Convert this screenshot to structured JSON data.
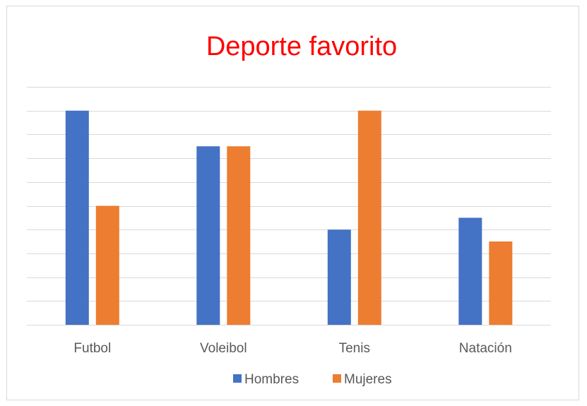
{
  "chart_data": {
    "type": "bar",
    "title": "Deporte favorito",
    "categories": [
      "Futbol",
      "Voleibol",
      "Tenis",
      "Natación"
    ],
    "series": [
      {
        "name": "Hombres",
        "values": [
          9,
          7.5,
          4,
          4.5
        ]
      },
      {
        "name": "Mujeres",
        "values": [
          5,
          7.5,
          9,
          3.5
        ]
      }
    ],
    "ylim": [
      0,
      10
    ],
    "grid": true,
    "legend": "bottom",
    "xlabel": "",
    "ylabel": ""
  },
  "colors": {
    "title": "#ff0000",
    "series": [
      "#4472c4",
      "#ed7d31"
    ],
    "gridline": "#d9d9d9",
    "axis_text": "#595959"
  }
}
